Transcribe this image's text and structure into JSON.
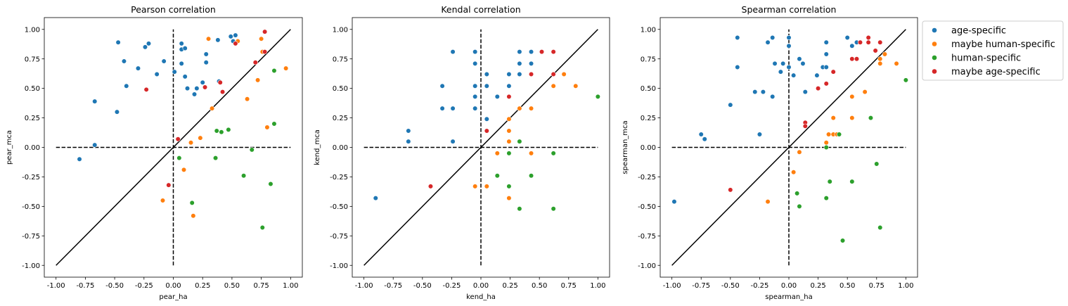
{
  "colors": {
    "age-specific": "#1f77b4",
    "maybe human-specific": "#ff7f0e",
    "human-specific": "#2ca02c",
    "maybe age-specific": "#d62728"
  },
  "legend": {
    "location": "upper-right-outside",
    "entries": [
      "age-specific",
      "maybe human-specific",
      "human-specific",
      "maybe age-specific"
    ]
  },
  "chart_data": [
    {
      "type": "scatter",
      "title": "Pearson correlation",
      "xlabel": "pear_ha",
      "ylabel": "pear_mca",
      "xlim": [
        -1.1,
        1.1
      ],
      "ylim": [
        -1.1,
        1.1
      ],
      "xticks": [
        "-1.00",
        "-0.75",
        "-0.50",
        "-0.25",
        "0.00",
        "0.25",
        "0.50",
        "0.75",
        "1.00"
      ],
      "yticks": [
        "-1.00",
        "-0.75",
        "-0.50",
        "-0.25",
        "0.00",
        "0.25",
        "0.50",
        "0.75",
        "1.00"
      ],
      "reference_lines": [
        "diagonal y=x",
        "dashed x=0",
        "dashed y=0"
      ],
      "series": [
        {
          "name": "age-specific",
          "points": [
            [
              -0.47,
              0.89
            ],
            [
              -0.42,
              0.73
            ],
            [
              -0.4,
              0.52
            ],
            [
              -0.3,
              0.67
            ],
            [
              -0.24,
              0.85
            ],
            [
              -0.21,
              0.88
            ],
            [
              -0.14,
              0.62
            ],
            [
              -0.08,
              0.73
            ],
            [
              0.01,
              0.64
            ],
            [
              0.07,
              0.88
            ],
            [
              0.07,
              0.83
            ],
            [
              0.1,
              0.84
            ],
            [
              0.07,
              0.71
            ],
            [
              0.1,
              0.6
            ],
            [
              0.12,
              0.5
            ],
            [
              0.18,
              0.45
            ],
            [
              0.2,
              0.5
            ],
            [
              0.25,
              0.55
            ],
            [
              0.28,
              0.79
            ],
            [
              0.28,
              0.72
            ],
            [
              0.38,
              0.91
            ],
            [
              0.39,
              0.56
            ],
            [
              0.49,
              0.94
            ],
            [
              0.53,
              0.95
            ],
            [
              0.51,
              0.9
            ],
            [
              -0.67,
              0.39
            ],
            [
              -0.48,
              0.3
            ],
            [
              -0.67,
              0.02
            ],
            [
              -0.8,
              -0.1
            ]
          ]
        },
        {
          "name": "maybe human-specific",
          "points": [
            [
              0.3,
              0.92
            ],
            [
              0.33,
              0.33
            ],
            [
              0.55,
              0.9
            ],
            [
              0.63,
              0.41
            ],
            [
              0.72,
              0.57
            ],
            [
              0.75,
              0.92
            ],
            [
              0.76,
              0.81
            ],
            [
              0.8,
              0.17
            ],
            [
              0.96,
              0.67
            ],
            [
              0.15,
              0.04
            ],
            [
              0.23,
              0.08
            ],
            [
              0.09,
              -0.19
            ],
            [
              -0.09,
              -0.45
            ],
            [
              0.17,
              -0.58
            ]
          ]
        },
        {
          "name": "human-specific",
          "points": [
            [
              0.37,
              0.14
            ],
            [
              0.41,
              0.13
            ],
            [
              0.47,
              0.15
            ],
            [
              0.36,
              -0.09
            ],
            [
              0.05,
              -0.09
            ],
            [
              0.6,
              -0.24
            ],
            [
              0.67,
              -0.02
            ],
            [
              0.83,
              -0.31
            ],
            [
              0.86,
              0.65
            ],
            [
              0.86,
              0.2
            ],
            [
              0.16,
              -0.47
            ],
            [
              0.76,
              -0.68
            ]
          ]
        },
        {
          "name": "maybe age-specific",
          "points": [
            [
              -0.23,
              0.49
            ],
            [
              0.27,
              0.51
            ],
            [
              0.4,
              0.55
            ],
            [
              0.42,
              0.47
            ],
            [
              0.53,
              0.88
            ],
            [
              0.7,
              0.72
            ],
            [
              0.78,
              0.81
            ],
            [
              0.78,
              0.98
            ],
            [
              0.04,
              0.07
            ],
            [
              -0.04,
              -0.32
            ]
          ]
        }
      ]
    },
    {
      "type": "scatter",
      "title": "Kendal correlation",
      "xlabel": "kend_ha",
      "ylabel": "kend_mca",
      "xlim": [
        -1.1,
        1.1
      ],
      "ylim": [
        -1.1,
        1.1
      ],
      "xticks": [
        "-1.00",
        "-0.75",
        "-0.50",
        "-0.25",
        "0.00",
        "0.25",
        "0.50",
        "0.75",
        "1.00"
      ],
      "yticks": [
        "-1.00",
        "-0.75",
        "-0.50",
        "-0.25",
        "0.00",
        "0.25",
        "0.50",
        "0.75",
        "1.00"
      ],
      "reference_lines": [
        "diagonal y=x",
        "dashed x=0",
        "dashed y=0"
      ],
      "series": [
        {
          "name": "age-specific",
          "points": [
            [
              -0.24,
              0.81
            ],
            [
              -0.05,
              0.81
            ],
            [
              -0.05,
              0.71
            ],
            [
              0.05,
              0.62
            ],
            [
              0.05,
              0.52
            ],
            [
              -0.05,
              0.52
            ],
            [
              -0.05,
              0.43
            ],
            [
              -0.05,
              0.33
            ],
            [
              -0.24,
              0.33
            ],
            [
              -0.33,
              0.52
            ],
            [
              -0.33,
              0.33
            ],
            [
              0.14,
              0.43
            ],
            [
              0.24,
              0.52
            ],
            [
              0.24,
              0.62
            ],
            [
              0.33,
              0.81
            ],
            [
              0.43,
              0.81
            ],
            [
              0.33,
              0.71
            ],
            [
              0.43,
              0.71
            ],
            [
              0.33,
              0.62
            ],
            [
              0.05,
              0.24
            ],
            [
              -0.62,
              0.14
            ],
            [
              -0.62,
              0.05
            ],
            [
              -0.24,
              0.05
            ],
            [
              -0.9,
              -0.43
            ]
          ]
        },
        {
          "name": "maybe human-specific",
          "points": [
            [
              0.33,
              0.33
            ],
            [
              0.43,
              0.33
            ],
            [
              0.24,
              0.24
            ],
            [
              0.24,
              0.14
            ],
            [
              0.24,
              0.05
            ],
            [
              0.14,
              -0.05
            ],
            [
              0.43,
              -0.05
            ],
            [
              0.62,
              0.52
            ],
            [
              0.71,
              0.62
            ],
            [
              0.81,
              0.52
            ],
            [
              -0.05,
              -0.33
            ],
            [
              0.05,
              -0.33
            ],
            [
              0.24,
              -0.43
            ]
          ]
        },
        {
          "name": "human-specific",
          "points": [
            [
              0.24,
              -0.05
            ],
            [
              0.14,
              -0.24
            ],
            [
              0.24,
              -0.33
            ],
            [
              0.33,
              0.05
            ],
            [
              0.43,
              -0.24
            ],
            [
              0.33,
              -0.52
            ],
            [
              0.62,
              -0.05
            ],
            [
              0.62,
              -0.52
            ],
            [
              1.0,
              0.43
            ]
          ]
        },
        {
          "name": "maybe age-specific",
          "points": [
            [
              0.24,
              0.43
            ],
            [
              0.43,
              0.62
            ],
            [
              0.52,
              0.81
            ],
            [
              0.62,
              0.81
            ],
            [
              0.62,
              0.62
            ],
            [
              0.05,
              0.14
            ],
            [
              -0.43,
              -0.33
            ]
          ]
        }
      ]
    },
    {
      "type": "scatter",
      "title": "Spearman correlation",
      "xlabel": "spearman_ha",
      "ylabel": "spearman_mca",
      "xlim": [
        -1.1,
        1.1
      ],
      "ylim": [
        -1.1,
        1.1
      ],
      "xticks": [
        "-1.00",
        "-0.75",
        "-0.50",
        "-0.25",
        "0.00",
        "0.25",
        "0.50",
        "0.75",
        "1.00"
      ],
      "yticks": [
        "-1.00",
        "-0.75",
        "-0.50",
        "-0.25",
        "0.00",
        "0.25",
        "0.50",
        "0.75",
        "1.00"
      ],
      "reference_lines": [
        "diagonal y=x",
        "dashed x=0",
        "dashed y=0"
      ],
      "series": [
        {
          "name": "age-specific",
          "points": [
            [
              -0.44,
              0.93
            ],
            [
              -0.44,
              0.68
            ],
            [
              -0.18,
              0.89
            ],
            [
              -0.14,
              0.93
            ],
            [
              -0.12,
              0.71
            ],
            [
              -0.05,
              0.71
            ],
            [
              -0.07,
              0.64
            ],
            [
              0.0,
              0.93
            ],
            [
              0.0,
              0.86
            ],
            [
              0.0,
              0.68
            ],
            [
              0.04,
              0.61
            ],
            [
              0.09,
              0.75
            ],
            [
              0.12,
              0.71
            ],
            [
              0.14,
              0.47
            ],
            [
              0.24,
              0.61
            ],
            [
              0.29,
              0.68
            ],
            [
              0.32,
              0.89
            ],
            [
              0.32,
              0.79
            ],
            [
              0.32,
              0.68
            ],
            [
              0.5,
              0.93
            ],
            [
              0.54,
              0.86
            ],
            [
              0.58,
              0.89
            ],
            [
              -0.29,
              0.47
            ],
            [
              -0.22,
              0.47
            ],
            [
              -0.14,
              0.43
            ],
            [
              -0.5,
              0.36
            ],
            [
              -0.25,
              0.11
            ],
            [
              -0.75,
              0.11
            ],
            [
              -0.72,
              0.07
            ],
            [
              -0.98,
              -0.46
            ]
          ]
        },
        {
          "name": "maybe human-specific",
          "points": [
            [
              0.65,
              0.47
            ],
            [
              0.54,
              0.43
            ],
            [
              0.54,
              0.25
            ],
            [
              0.38,
              0.25
            ],
            [
              0.34,
              0.11
            ],
            [
              0.38,
              0.11
            ],
            [
              0.41,
              0.11
            ],
            [
              0.32,
              0.04
            ],
            [
              0.09,
              -0.04
            ],
            [
              0.04,
              -0.21
            ],
            [
              -0.18,
              -0.46
            ],
            [
              0.78,
              0.75
            ],
            [
              0.78,
              0.71
            ],
            [
              0.82,
              0.79
            ],
            [
              0.92,
              0.71
            ]
          ]
        },
        {
          "name": "human-specific",
          "points": [
            [
              0.43,
              0.11
            ],
            [
              0.32,
              0.0
            ],
            [
              0.7,
              0.25
            ],
            [
              0.75,
              -0.14
            ],
            [
              0.78,
              -0.68
            ],
            [
              0.46,
              -0.79
            ],
            [
              1.0,
              0.57
            ],
            [
              0.35,
              -0.29
            ],
            [
              0.54,
              -0.29
            ],
            [
              0.32,
              -0.43
            ],
            [
              0.07,
              -0.39
            ],
            [
              0.09,
              -0.5
            ]
          ]
        },
        {
          "name": "maybe age-specific",
          "points": [
            [
              0.14,
              0.21
            ],
            [
              0.14,
              0.18
            ],
            [
              0.25,
              0.5
            ],
            [
              0.32,
              0.54
            ],
            [
              0.38,
              0.64
            ],
            [
              0.54,
              0.75
            ],
            [
              0.58,
              0.75
            ],
            [
              0.61,
              0.89
            ],
            [
              0.68,
              0.93
            ],
            [
              0.68,
              0.89
            ],
            [
              0.74,
              0.82
            ],
            [
              0.78,
              0.89
            ],
            [
              -0.5,
              -0.36
            ]
          ]
        }
      ]
    }
  ]
}
